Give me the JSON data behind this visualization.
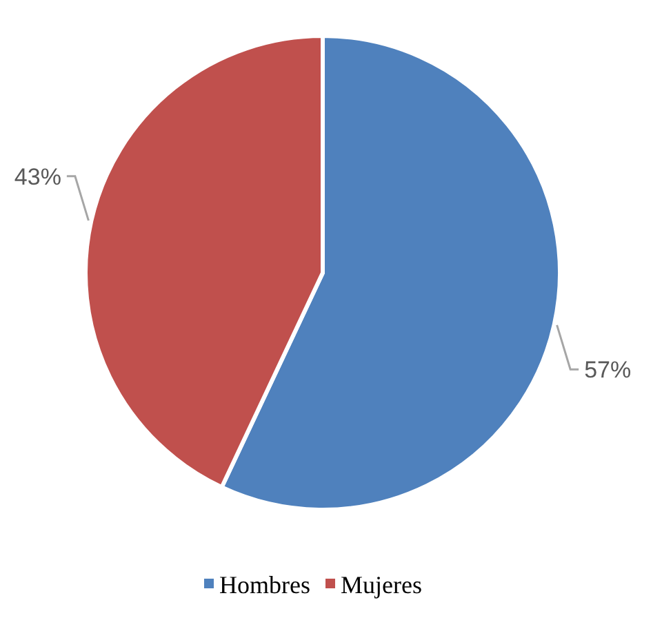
{
  "chart_data": {
    "type": "pie",
    "categories": [
      "Hombres",
      "Mujeres"
    ],
    "values": [
      57,
      43
    ],
    "colors": [
      "#4f81bd",
      "#c0504d"
    ],
    "value_labels": [
      "57%",
      "43%"
    ],
    "legend": "bottom"
  }
}
